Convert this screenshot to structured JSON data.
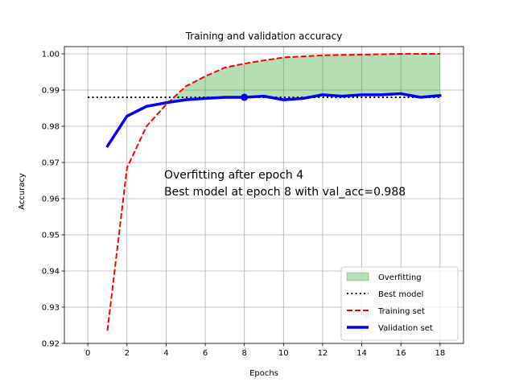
{
  "chart_data": {
    "type": "line",
    "title": "Training and validation accuracy",
    "xlabel": "Epochs",
    "ylabel": "Accuracy",
    "xlim": [
      -1.2,
      19.2
    ],
    "ylim": [
      0.92,
      1.002
    ],
    "xticks": [
      0,
      2,
      4,
      6,
      8,
      10,
      12,
      14,
      16,
      18
    ],
    "xtick_labels": [
      "0",
      "2",
      "4",
      "6",
      "8",
      "10",
      "12",
      "14",
      "16",
      "18"
    ],
    "yticks": [
      0.92,
      0.93,
      0.94,
      0.95,
      0.96,
      0.97,
      0.98,
      0.99,
      1.0
    ],
    "ytick_labels": [
      "0.92",
      "0.93",
      "0.94",
      "0.95",
      "0.96",
      "0.97",
      "0.98",
      "0.99",
      "1.00"
    ],
    "grid": true,
    "legend_position": "lower-right",
    "x": [
      1,
      2,
      3,
      4,
      5,
      6,
      7,
      8,
      9,
      10,
      11,
      12,
      13,
      14,
      15,
      16,
      17,
      18
    ],
    "series": [
      {
        "name": "Training set",
        "style": "dashed",
        "color": "#ff0000",
        "values": [
          0.9235,
          0.9685,
          0.98,
          0.986,
          0.991,
          0.9938,
          0.9962,
          0.9973,
          0.9982,
          0.999,
          0.9993,
          0.9996,
          0.9997,
          0.9998,
          0.9999,
          1.0,
          1.0,
          1.0
        ]
      },
      {
        "name": "Validation set",
        "style": "solid",
        "color": "#0000ff",
        "values": [
          0.9745,
          0.9828,
          0.9855,
          0.9865,
          0.9873,
          0.9877,
          0.988,
          0.988,
          0.9883,
          0.9873,
          0.9877,
          0.9887,
          0.9883,
          0.9887,
          0.9887,
          0.989,
          0.988,
          0.9885
        ]
      }
    ],
    "best_model": {
      "name": "Best model",
      "epoch": 8,
      "value": 0.988,
      "style": "dotted",
      "color": "#000000",
      "x_range": [
        0,
        18
      ]
    },
    "overfitting": {
      "name": "Overfitting",
      "from_epoch": 4,
      "color": "#2ca02c"
    },
    "annotations": [
      "Overfitting after epoch 4",
      "Best model at epoch 8 with val_acc=0.988"
    ]
  }
}
